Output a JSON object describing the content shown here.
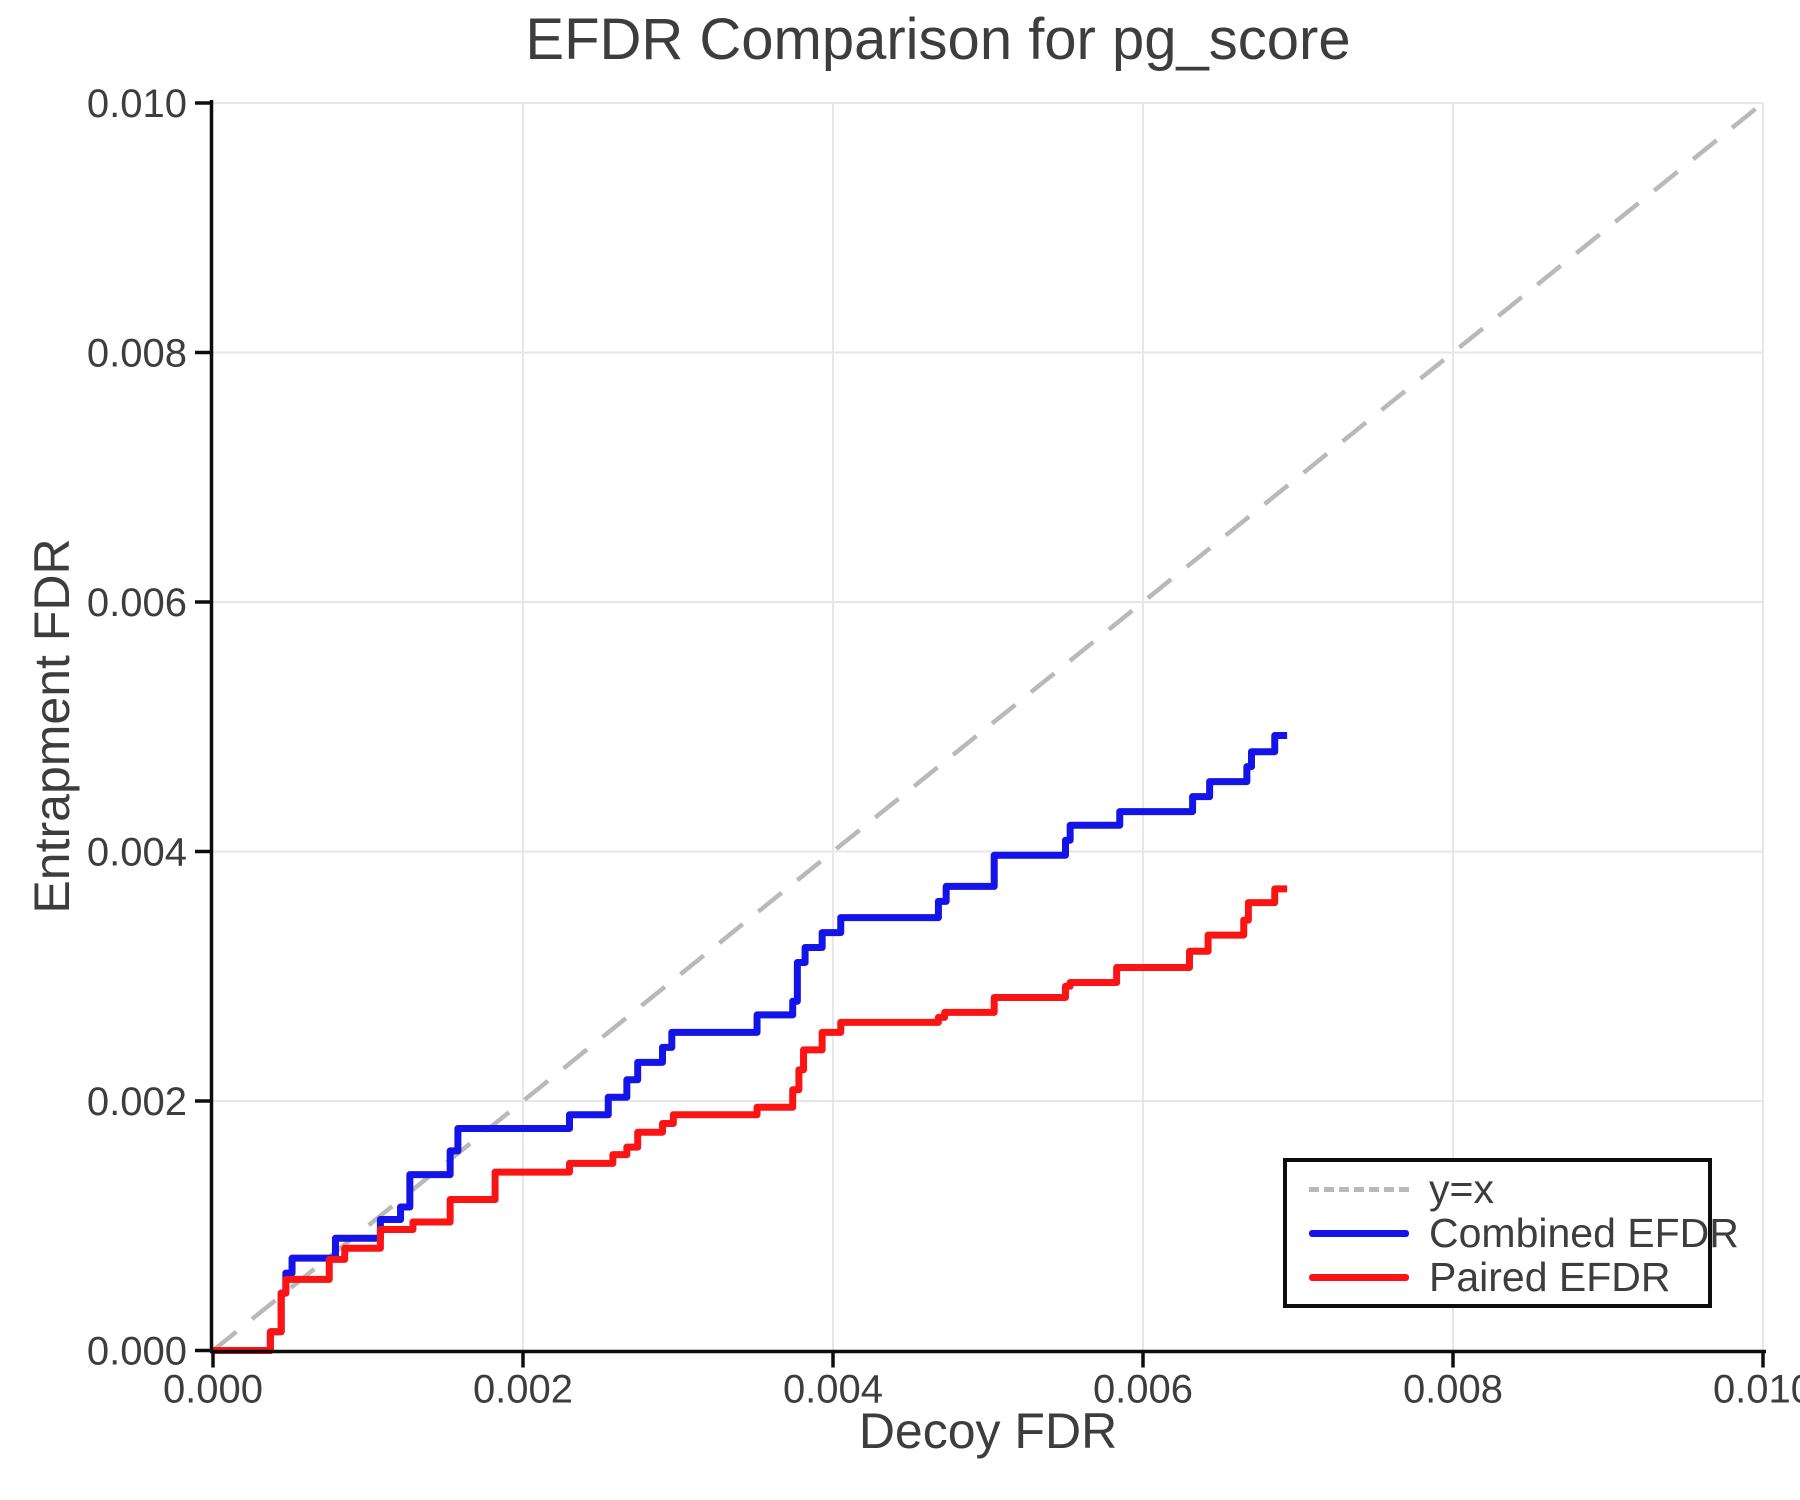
{
  "chart_data": {
    "type": "line",
    "title": "EFDR Comparison for pg_score",
    "xlabel": "Decoy FDR",
    "ylabel": "Entrapment FDR",
    "xlim": [
      0.0,
      0.01
    ],
    "ylim": [
      0.0,
      0.01
    ],
    "grid": true,
    "x_ticks": [
      0.0,
      0.002,
      0.004,
      0.006,
      0.008,
      0.01
    ],
    "x_tick_labels": [
      "0.000",
      "0.002",
      "0.004",
      "0.006",
      "0.008",
      "0.010"
    ],
    "y_ticks": [
      0.0,
      0.002,
      0.004,
      0.006,
      0.008,
      0.01
    ],
    "y_tick_labels": [
      "0.000",
      "0.002",
      "0.004",
      "0.006",
      "0.008",
      "0.010"
    ],
    "legend_position": "lower right",
    "series": [
      {
        "name": "y=x",
        "style": "dashed",
        "color": "#b9b9b9",
        "x": [
          0.0,
          0.01
        ],
        "y": [
          0.0,
          0.01
        ]
      },
      {
        "name": "Combined EFDR",
        "style": "step",
        "color": "#1414e8",
        "x": [
          0.0,
          0.00037,
          0.00044,
          0.00047,
          0.00051,
          0.00079,
          0.00108,
          0.00121,
          0.00127,
          0.00153,
          0.00158,
          0.0023,
          0.00255,
          0.00267,
          0.00274,
          0.0029,
          0.00296,
          0.00351,
          0.00374,
          0.00377,
          0.00382,
          0.00393,
          0.00405,
          0.00468,
          0.00473,
          0.00504,
          0.0055,
          0.00553,
          0.00585,
          0.00632,
          0.00643,
          0.00667,
          0.0067,
          0.00685,
          0.00693
        ],
        "y": [
          0.0,
          0.00015,
          0.00046,
          0.00062,
          0.00074,
          0.0009,
          0.00105,
          0.00115,
          0.00141,
          0.0016,
          0.00178,
          0.00189,
          0.00203,
          0.00217,
          0.00231,
          0.00243,
          0.00255,
          0.00269,
          0.0028,
          0.00311,
          0.00323,
          0.00335,
          0.00347,
          0.0036,
          0.00372,
          0.00397,
          0.00409,
          0.00421,
          0.00432,
          0.00444,
          0.00456,
          0.00468,
          0.0048,
          0.00493,
          0.00493
        ]
      },
      {
        "name": "Paired EFDR",
        "style": "step",
        "color": "#fb1414",
        "x": [
          0.0,
          0.00037,
          0.00044,
          0.00047,
          0.00075,
          0.00085,
          0.00108,
          0.00129,
          0.00153,
          0.00182,
          0.0023,
          0.00258,
          0.00267,
          0.00274,
          0.0029,
          0.00297,
          0.00351,
          0.00374,
          0.00378,
          0.00381,
          0.00393,
          0.00405,
          0.00468,
          0.00472,
          0.00504,
          0.0055,
          0.00553,
          0.00583,
          0.0063,
          0.00642,
          0.00665,
          0.00668,
          0.00685,
          0.00693
        ],
        "y": [
          0.0,
          0.00015,
          0.00046,
          0.00057,
          0.00073,
          0.00082,
          0.00097,
          0.00103,
          0.00121,
          0.00143,
          0.0015,
          0.00157,
          0.00163,
          0.00175,
          0.00182,
          0.00189,
          0.00195,
          0.00209,
          0.00225,
          0.00241,
          0.00255,
          0.00263,
          0.00267,
          0.00271,
          0.00283,
          0.00292,
          0.00295,
          0.00307,
          0.0032,
          0.00333,
          0.00345,
          0.00359,
          0.0037,
          0.0037
        ]
      }
    ],
    "legend": {
      "items": [
        {
          "label": "y=x",
          "style": "dashed",
          "color": "#b9b9b9"
        },
        {
          "label": "Combined EFDR",
          "style": "solid",
          "color": "#1414e8"
        },
        {
          "label": "Paired EFDR",
          "style": "solid",
          "color": "#fb1414"
        }
      ]
    },
    "colors": {
      "spine": "#0d0d0d",
      "grid": "#e7e7e7",
      "tick_text": "#3d3d3d",
      "background": "#ffffff"
    }
  }
}
